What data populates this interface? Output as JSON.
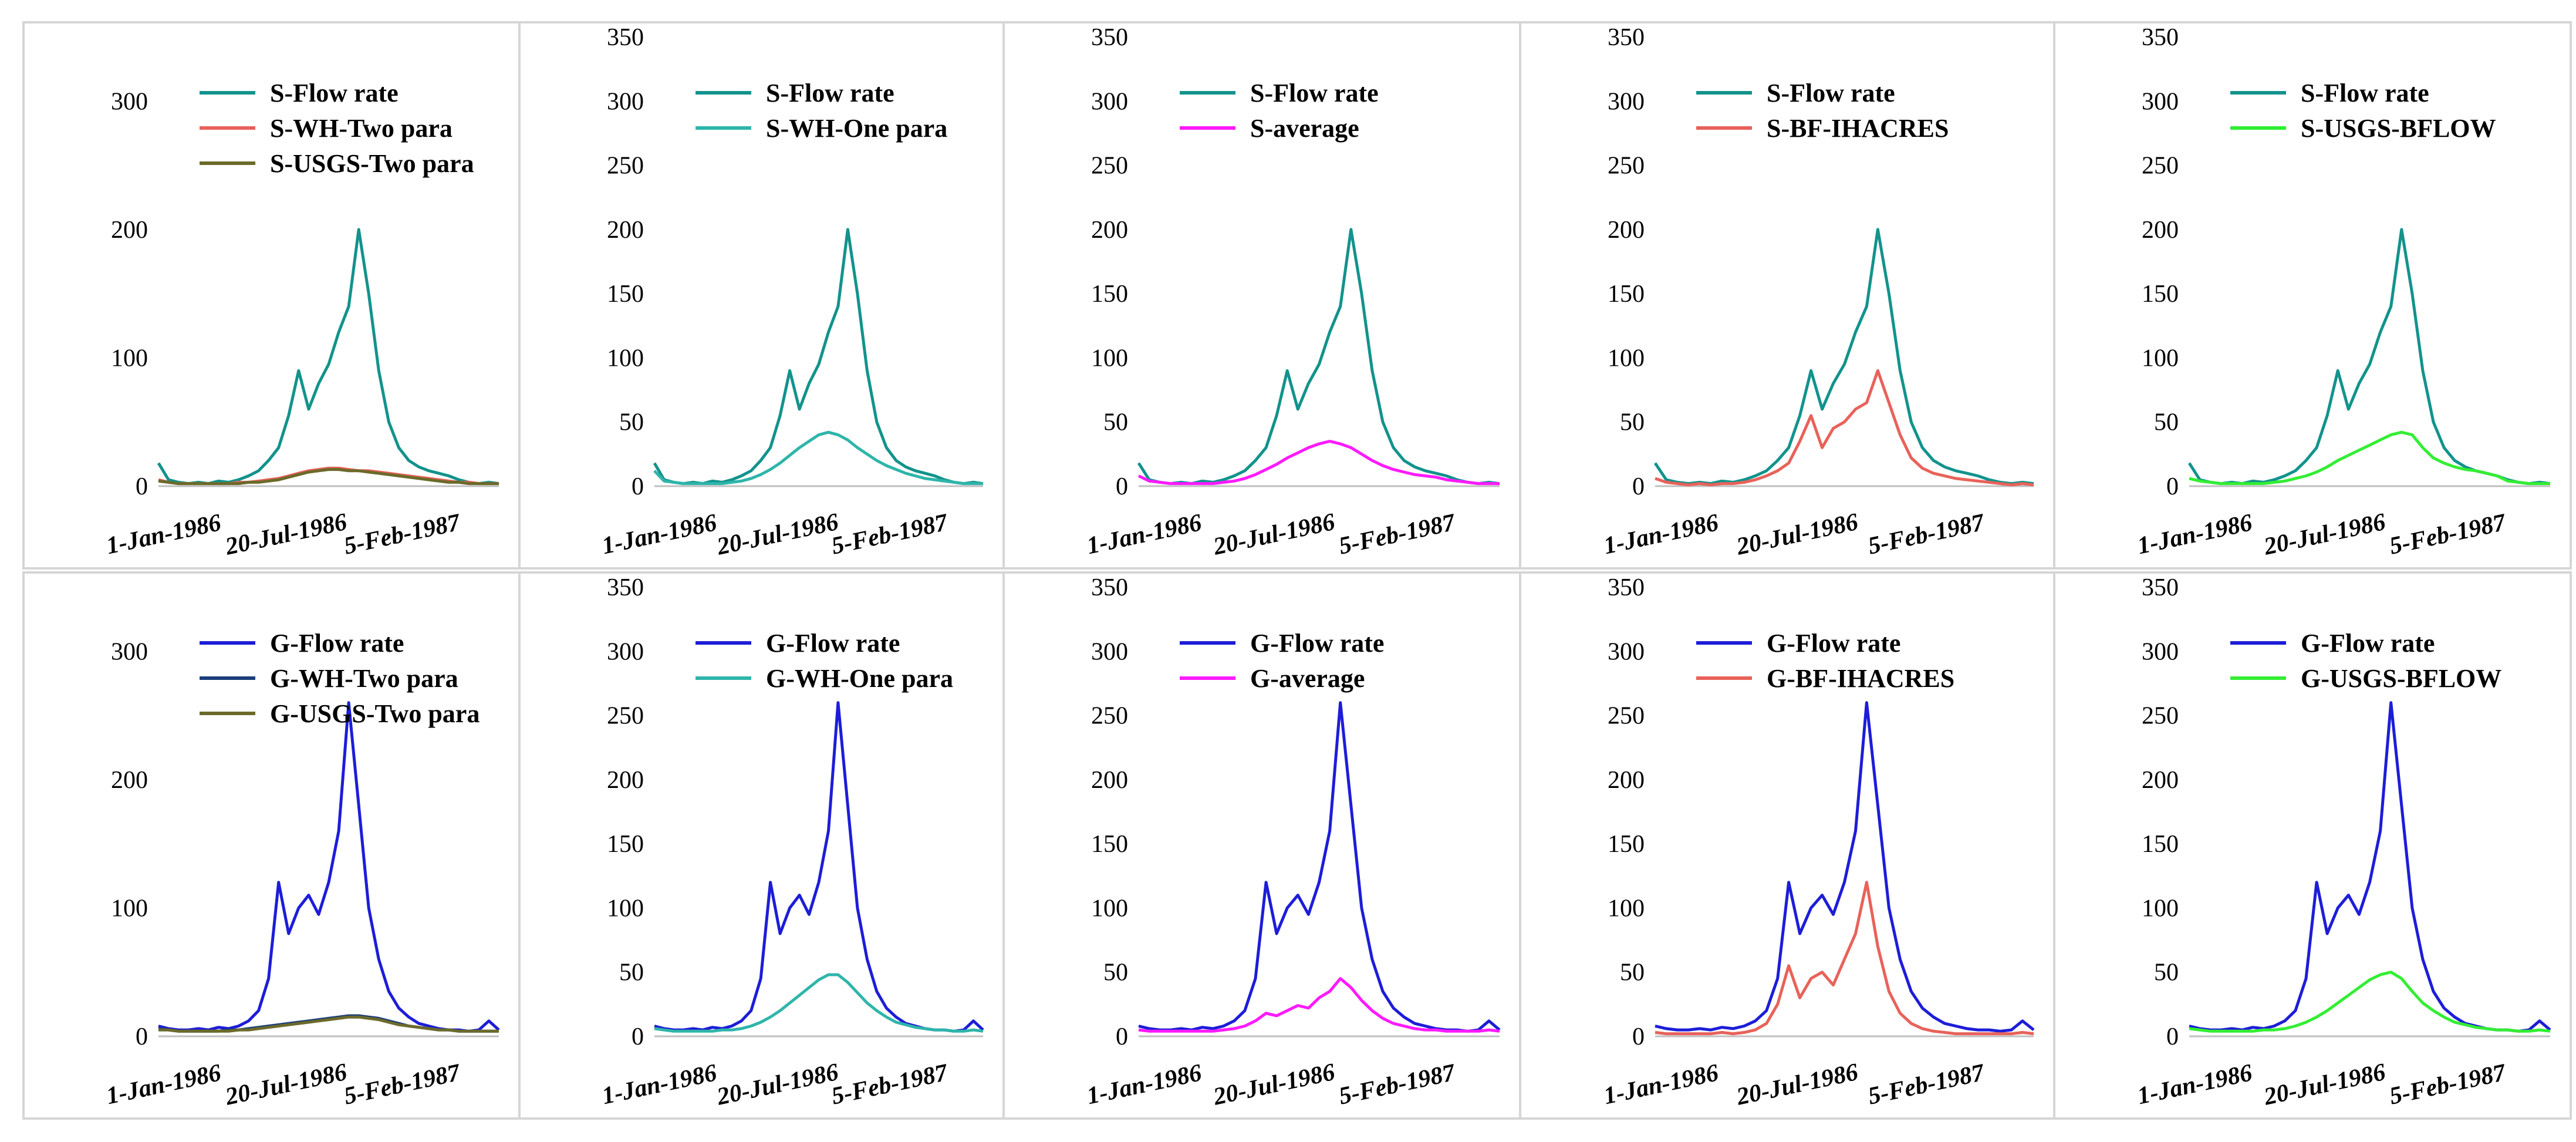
{
  "chart_data": [
    {
      "type": "line",
      "panel_id": "p1",
      "x_start": "1986-01-01",
      "x_end": "1987-12-31",
      "x_ticks": [
        "1-Jan-1986",
        "20-Jul-1986",
        "5-Feb-1987"
      ],
      "ylim": [
        0,
        350
      ],
      "y_ticks": [
        0,
        100,
        200,
        300
      ],
      "series": [
        {
          "name": "S-Flow rate",
          "color": "#12938c",
          "values": [
            18,
            5,
            3,
            2,
            3,
            2,
            4,
            3,
            5,
            8,
            12,
            20,
            30,
            55,
            90,
            60,
            80,
            95,
            120,
            140,
            200,
            150,
            90,
            50,
            30,
            20,
            15,
            12,
            10,
            8,
            5,
            3,
            2,
            3,
            2
          ]
        },
        {
          "name": "S-WH-Two para",
          "color": "#e8625a",
          "values": [
            5,
            3,
            2,
            2,
            2,
            2,
            2,
            2,
            3,
            3,
            4,
            5,
            6,
            8,
            10,
            12,
            13,
            14,
            14,
            13,
            12,
            12,
            11,
            10,
            9,
            8,
            7,
            6,
            5,
            4,
            3,
            3,
            2,
            2,
            2
          ]
        },
        {
          "name": "S-USGS-Two para",
          "color": "#6b6a2a",
          "values": [
            4,
            3,
            2,
            2,
            2,
            2,
            2,
            2,
            2,
            3,
            3,
            4,
            5,
            7,
            9,
            11,
            12,
            13,
            13,
            12,
            12,
            11,
            10,
            9,
            8,
            7,
            6,
            5,
            4,
            3,
            3,
            2,
            2,
            2,
            2
          ]
        }
      ]
    },
    {
      "type": "line",
      "panel_id": "p2",
      "x_start": "1986-01-01",
      "x_end": "1987-12-31",
      "x_ticks": [
        "1-Jan-1986",
        "20-Jul-1986",
        "5-Feb-1987"
      ],
      "ylim": [
        0,
        350
      ],
      "y_ticks": [
        0,
        50,
        100,
        150,
        200,
        250,
        300,
        350
      ],
      "series": [
        {
          "name": "S-Flow rate",
          "color": "#12938c",
          "values": [
            18,
            5,
            3,
            2,
            3,
            2,
            4,
            3,
            5,
            8,
            12,
            20,
            30,
            55,
            90,
            60,
            80,
            95,
            120,
            140,
            200,
            150,
            90,
            50,
            30,
            20,
            15,
            12,
            10,
            8,
            5,
            3,
            2,
            3,
            2
          ]
        },
        {
          "name": "S-WH-One para",
          "color": "#2fb5aa",
          "values": [
            12,
            4,
            3,
            2,
            2,
            2,
            2,
            2,
            3,
            4,
            6,
            9,
            13,
            18,
            24,
            30,
            35,
            40,
            42,
            40,
            36,
            30,
            25,
            20,
            16,
            13,
            10,
            8,
            6,
            5,
            4,
            3,
            2,
            2,
            2
          ]
        }
      ]
    },
    {
      "type": "line",
      "panel_id": "p3",
      "x_start": "1986-01-01",
      "x_end": "1987-12-31",
      "x_ticks": [
        "1-Jan-1986",
        "20-Jul-1986",
        "5-Feb-1987"
      ],
      "ylim": [
        0,
        350
      ],
      "y_ticks": [
        0,
        50,
        100,
        150,
        200,
        250,
        300,
        350
      ],
      "series": [
        {
          "name": "S-Flow rate",
          "color": "#12938c",
          "values": [
            18,
            5,
            3,
            2,
            3,
            2,
            4,
            3,
            5,
            8,
            12,
            20,
            30,
            55,
            90,
            60,
            80,
            95,
            120,
            140,
            200,
            150,
            90,
            50,
            30,
            20,
            15,
            12,
            10,
            8,
            5,
            3,
            2,
            3,
            2
          ]
        },
        {
          "name": "S-average",
          "color": "#ff1aff",
          "values": [
            8,
            4,
            3,
            2,
            2,
            2,
            2,
            2,
            3,
            4,
            6,
            9,
            13,
            17,
            22,
            26,
            30,
            33,
            35,
            33,
            30,
            25,
            20,
            16,
            13,
            11,
            9,
            8,
            7,
            5,
            4,
            3,
            2,
            2,
            2
          ]
        }
      ]
    },
    {
      "type": "line",
      "panel_id": "p4",
      "x_start": "1986-01-01",
      "x_end": "1987-12-31",
      "x_ticks": [
        "1-Jan-1986",
        "20-Jul-1986",
        "5-Feb-1987"
      ],
      "ylim": [
        0,
        350
      ],
      "y_ticks": [
        0,
        50,
        100,
        150,
        200,
        250,
        300,
        350
      ],
      "series": [
        {
          "name": "S-Flow rate",
          "color": "#12938c",
          "values": [
            18,
            5,
            3,
            2,
            3,
            2,
            4,
            3,
            5,
            8,
            12,
            20,
            30,
            55,
            90,
            60,
            80,
            95,
            120,
            140,
            200,
            150,
            90,
            50,
            30,
            20,
            15,
            12,
            10,
            8,
            5,
            3,
            2,
            3,
            2
          ]
        },
        {
          "name": "S-BF-IHACRES",
          "color": "#e8625a",
          "values": [
            6,
            3,
            2,
            1,
            2,
            1,
            2,
            2,
            3,
            5,
            8,
            12,
            18,
            35,
            55,
            30,
            45,
            50,
            60,
            65,
            90,
            65,
            40,
            22,
            14,
            10,
            8,
            6,
            5,
            4,
            3,
            2,
            1,
            2,
            1
          ]
        }
      ]
    },
    {
      "type": "line",
      "panel_id": "p5",
      "x_start": "1986-01-01",
      "x_end": "1987-12-31",
      "x_ticks": [
        "1-Jan-1986",
        "20-Jul-1986",
        "5-Feb-1987"
      ],
      "ylim": [
        0,
        350
      ],
      "y_ticks": [
        0,
        50,
        100,
        150,
        200,
        250,
        300,
        350
      ],
      "series": [
        {
          "name": "S-Flow rate",
          "color": "#12938c",
          "values": [
            18,
            5,
            3,
            2,
            3,
            2,
            4,
            3,
            5,
            8,
            12,
            20,
            30,
            55,
            90,
            60,
            80,
            95,
            120,
            140,
            200,
            150,
            90,
            50,
            30,
            20,
            15,
            12,
            10,
            8,
            5,
            3,
            2,
            3,
            2
          ]
        },
        {
          "name": "S-USGS-BFLOW",
          "color": "#33ee33",
          "values": [
            6,
            4,
            3,
            2,
            2,
            2,
            2,
            2,
            3,
            4,
            6,
            8,
            11,
            15,
            20,
            24,
            28,
            32,
            36,
            40,
            42,
            40,
            30,
            22,
            18,
            15,
            13,
            12,
            10,
            8,
            4,
            3,
            2,
            2,
            2
          ]
        }
      ]
    },
    {
      "type": "line",
      "panel_id": "p6",
      "x_start": "1986-01-01",
      "x_end": "1987-12-31",
      "x_ticks": [
        "1-Jan-1986",
        "20-Jul-1986",
        "5-Feb-1987"
      ],
      "ylim": [
        0,
        350
      ],
      "y_ticks": [
        0,
        100,
        200,
        300
      ],
      "series": [
        {
          "name": "G-Flow rate",
          "color": "#1d1dd8",
          "values": [
            8,
            6,
            5,
            5,
            6,
            5,
            7,
            6,
            8,
            12,
            20,
            45,
            120,
            80,
            100,
            110,
            95,
            120,
            160,
            260,
            180,
            100,
            60,
            35,
            22,
            15,
            10,
            8,
            6,
            5,
            5,
            4,
            5,
            12,
            5
          ]
        },
        {
          "name": "G-WH-Two para",
          "color": "#1b3e7a",
          "values": [
            6,
            5,
            4,
            4,
            4,
            4,
            4,
            5,
            5,
            6,
            7,
            8,
            9,
            10,
            11,
            12,
            13,
            14,
            15,
            16,
            16,
            15,
            14,
            12,
            10,
            8,
            7,
            6,
            5,
            5,
            4,
            4,
            4,
            4,
            4
          ]
        },
        {
          "name": "G-USGS-Two para",
          "color": "#6b6a2a",
          "values": [
            5,
            5,
            4,
            4,
            4,
            4,
            4,
            4,
            5,
            5,
            6,
            7,
            8,
            9,
            10,
            11,
            12,
            13,
            14,
            15,
            15,
            14,
            13,
            11,
            9,
            8,
            7,
            6,
            5,
            5,
            4,
            4,
            4,
            4,
            4
          ]
        }
      ]
    },
    {
      "type": "line",
      "panel_id": "p7",
      "x_start": "1986-01-01",
      "x_end": "1987-12-31",
      "x_ticks": [
        "1-Jan-1986",
        "20-Jul-1986",
        "5-Feb-1987"
      ],
      "ylim": [
        0,
        350
      ],
      "y_ticks": [
        0,
        50,
        100,
        150,
        200,
        250,
        300,
        350
      ],
      "series": [
        {
          "name": "G-Flow rate",
          "color": "#1d1dd8",
          "values": [
            8,
            6,
            5,
            5,
            6,
            5,
            7,
            6,
            8,
            12,
            20,
            45,
            120,
            80,
            100,
            110,
            95,
            120,
            160,
            260,
            180,
            100,
            60,
            35,
            22,
            15,
            10,
            8,
            6,
            5,
            5,
            4,
            5,
            12,
            5
          ]
        },
        {
          "name": "G-WH-One para",
          "color": "#2fb5aa",
          "values": [
            6,
            5,
            4,
            4,
            4,
            4,
            4,
            5,
            5,
            6,
            8,
            11,
            15,
            20,
            26,
            32,
            38,
            44,
            48,
            48,
            42,
            34,
            26,
            20,
            15,
            11,
            9,
            7,
            6,
            5,
            5,
            4,
            4,
            5,
            4
          ]
        }
      ]
    },
    {
      "type": "line",
      "panel_id": "p8",
      "x_start": "1986-01-01",
      "x_end": "1987-12-31",
      "x_ticks": [
        "1-Jan-1986",
        "20-Jul-1986",
        "5-Feb-1987"
      ],
      "ylim": [
        0,
        350
      ],
      "y_ticks": [
        0,
        50,
        100,
        150,
        200,
        250,
        300,
        350
      ],
      "series": [
        {
          "name": "G-Flow rate",
          "color": "#1d1dd8",
          "values": [
            8,
            6,
            5,
            5,
            6,
            5,
            7,
            6,
            8,
            12,
            20,
            45,
            120,
            80,
            100,
            110,
            95,
            120,
            160,
            260,
            180,
            100,
            60,
            35,
            22,
            15,
            10,
            8,
            6,
            5,
            5,
            4,
            5,
            12,
            5
          ]
        },
        {
          "name": "G-average",
          "color": "#ff1aff",
          "values": [
            5,
            4,
            4,
            4,
            4,
            4,
            4,
            4,
            5,
            6,
            8,
            12,
            18,
            16,
            20,
            24,
            22,
            30,
            35,
            45,
            38,
            28,
            20,
            14,
            10,
            8,
            6,
            5,
            5,
            4,
            4,
            4,
            4,
            5,
            4
          ]
        }
      ]
    },
    {
      "type": "line",
      "panel_id": "p9",
      "x_start": "1986-01-01",
      "x_end": "1987-12-31",
      "x_ticks": [
        "1-Jan-1986",
        "20-Jul-1986",
        "5-Feb-1987"
      ],
      "ylim": [
        0,
        350
      ],
      "y_ticks": [
        0,
        50,
        100,
        150,
        200,
        250,
        300,
        350
      ],
      "series": [
        {
          "name": "G-Flow rate",
          "color": "#1d1dd8",
          "values": [
            8,
            6,
            5,
            5,
            6,
            5,
            7,
            6,
            8,
            12,
            20,
            45,
            120,
            80,
            100,
            110,
            95,
            120,
            160,
            260,
            180,
            100,
            60,
            35,
            22,
            15,
            10,
            8,
            6,
            5,
            5,
            4,
            5,
            12,
            5
          ]
        },
        {
          "name": "G-BF-IHACRES",
          "color": "#e8625a",
          "values": [
            3,
            2,
            2,
            2,
            2,
            2,
            3,
            2,
            3,
            5,
            10,
            25,
            55,
            30,
            45,
            50,
            40,
            60,
            80,
            120,
            70,
            35,
            18,
            10,
            6,
            4,
            3,
            2,
            2,
            2,
            2,
            2,
            2,
            3,
            2
          ]
        }
      ]
    },
    {
      "type": "line",
      "panel_id": "p10",
      "x_start": "1986-01-01",
      "x_end": "1987-12-31",
      "x_ticks": [
        "1-Jan-1986",
        "20-Jul-1986",
        "5-Feb-1987"
      ],
      "ylim": [
        0,
        350
      ],
      "y_ticks": [
        0,
        50,
        100,
        150,
        200,
        250,
        300,
        350
      ],
      "series": [
        {
          "name": "G-Flow rate",
          "color": "#1d1dd8",
          "values": [
            8,
            6,
            5,
            5,
            6,
            5,
            7,
            6,
            8,
            12,
            20,
            45,
            120,
            80,
            100,
            110,
            95,
            120,
            160,
            260,
            180,
            100,
            60,
            35,
            22,
            15,
            10,
            8,
            6,
            5,
            5,
            4,
            5,
            12,
            5
          ]
        },
        {
          "name": "G-USGS-BFLOW",
          "color": "#33ee33",
          "values": [
            6,
            5,
            4,
            4,
            4,
            4,
            4,
            5,
            5,
            6,
            8,
            11,
            15,
            20,
            26,
            32,
            38,
            44,
            48,
            50,
            45,
            35,
            26,
            20,
            15,
            11,
            9,
            7,
            6,
            5,
            5,
            4,
            4,
            5,
            4
          ]
        }
      ]
    }
  ]
}
